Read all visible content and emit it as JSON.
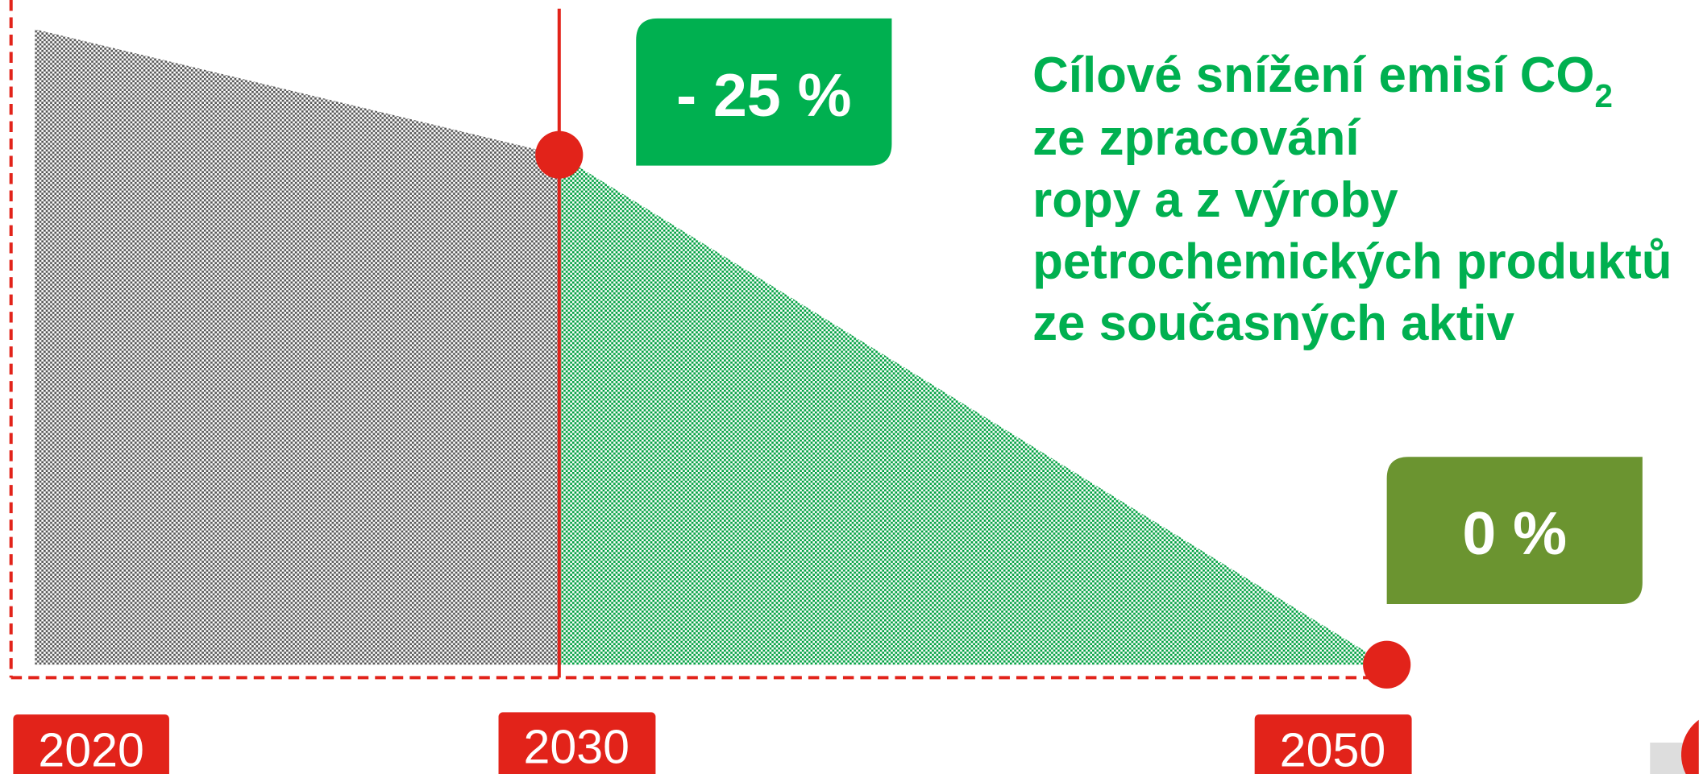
{
  "badges": {
    "start": "- 25 %",
    "end": "0 %"
  },
  "heading": {
    "line1": "Cílové snížení emisí CO",
    "line1_sub": "2",
    "line2": "ze zpracování",
    "line3": "ropy a z výroby",
    "line4": "petrochemických produktů",
    "line5": "ze současných aktiv"
  },
  "years": [
    "2020",
    "2030",
    "2050"
  ]
}
